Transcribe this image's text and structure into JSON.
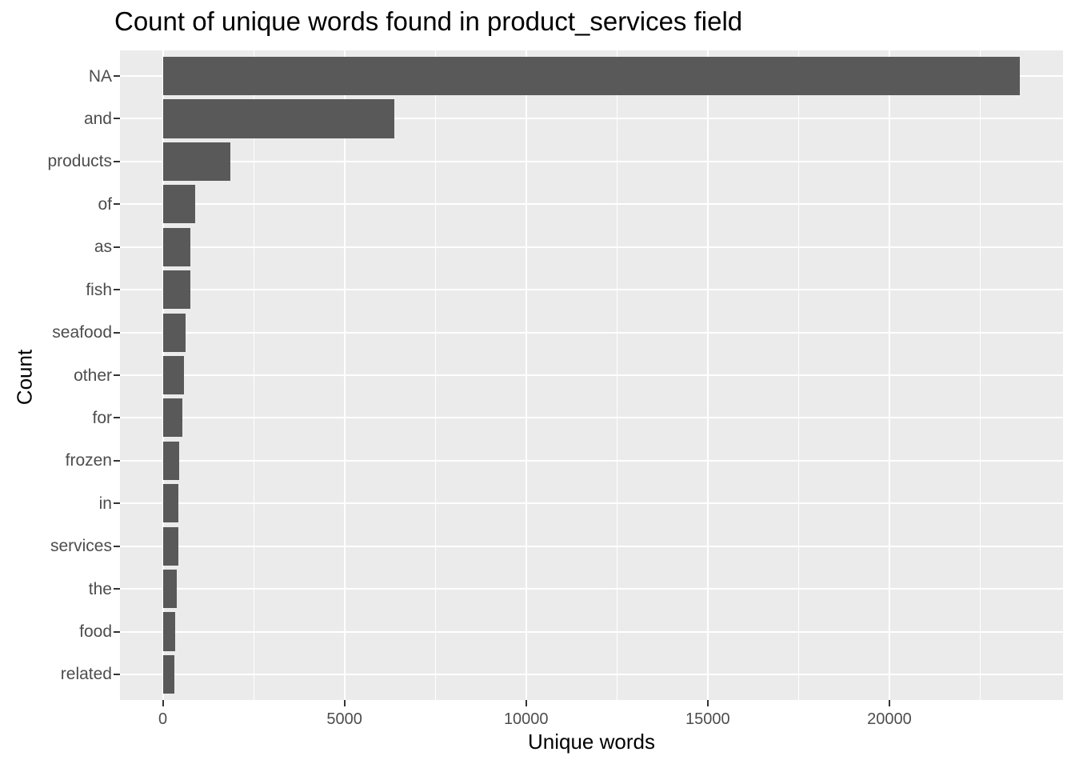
{
  "chart_data": {
    "type": "bar",
    "orientation": "horizontal",
    "title": "Count of unique words found in product_services field",
    "xlabel": "Unique words",
    "ylabel": "Count",
    "categories": [
      "NA",
      "and",
      "products",
      "of",
      "as",
      "fish",
      "seafood",
      "other",
      "for",
      "frozen",
      "in",
      "services",
      "the",
      "food",
      "related"
    ],
    "values": [
      23600,
      6370,
      1860,
      880,
      750,
      750,
      620,
      590,
      540,
      450,
      435,
      430,
      380,
      340,
      310
    ],
    "x_ticks": [
      0,
      5000,
      10000,
      15000,
      20000
    ],
    "x_tick_labels": [
      "0",
      "5000",
      "10000",
      "15000",
      "20000"
    ],
    "x_minor_ticks": [
      2500,
      7500,
      12500,
      17500,
      22500
    ],
    "xlim": [
      -1180,
      24780
    ],
    "grid": true,
    "legend": false,
    "colors": {
      "bar_fill": "#595959",
      "panel_background": "#EBEBEB",
      "gridline": "#FFFFFF",
      "tick_label": "#4D4D4D",
      "tick_mark": "#333333",
      "axis_title": "#000000",
      "title": "#000000",
      "figure_background": "#FFFFFF"
    }
  }
}
